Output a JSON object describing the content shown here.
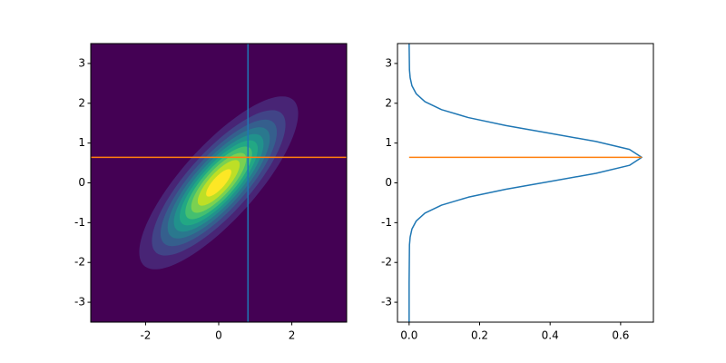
{
  "chart_data": [
    {
      "type": "contour",
      "mean": [
        0,
        0
      ],
      "cov": [
        [
          1,
          0.8
        ],
        [
          0.8,
          1
        ]
      ],
      "levels": [
        0,
        0.025,
        0.05,
        0.075,
        0.1,
        0.125,
        0.15,
        0.175,
        0.2,
        0.225,
        0.25
      ],
      "colors": [
        "#440154",
        "#482475",
        "#414487",
        "#355f8d",
        "#2a788e",
        "#21918c",
        "#22a884",
        "#44bf70",
        "#7ad151",
        "#bddf26",
        "#fde725"
      ],
      "xlim": [
        -3.5,
        3.5
      ],
      "ylim": [
        -3.5,
        3.5
      ],
      "xticks": [
        -2,
        0,
        2
      ],
      "yticks": [
        -3,
        -2,
        -1,
        0,
        1,
        2,
        3
      ],
      "vline": {
        "value": 0.8,
        "color": "#1f77b4"
      },
      "hline": {
        "value": 0.64,
        "color": "#ff7f0e"
      }
    },
    {
      "type": "line",
      "y": [
        -3.5,
        -2.5,
        -1.56,
        -1.36,
        -1.16,
        -0.96,
        -0.76,
        -0.56,
        -0.36,
        -0.16,
        0.04,
        0.24,
        0.44,
        0.64,
        0.84,
        1.04,
        1.24,
        1.44,
        1.64,
        1.84,
        2.04,
        2.24,
        2.44,
        2.64,
        2.84,
        3.5
      ],
      "values": [
        0,
        0,
        0.001,
        0.003,
        0.008,
        0.02,
        0.045,
        0.092,
        0.168,
        0.275,
        0.403,
        0.53,
        0.625,
        0.66,
        0.625,
        0.53,
        0.403,
        0.275,
        0.168,
        0.092,
        0.045,
        0.02,
        0.008,
        0.003,
        0.001,
        0
      ],
      "color": "#1f77b4",
      "xlim": [
        -0.033,
        0.693
      ],
      "ylim": [
        -3.5,
        3.5
      ],
      "xticks": [
        {
          "value": 0,
          "label": "0.0"
        },
        {
          "value": 0.2,
          "label": "0.2"
        },
        {
          "value": 0.4,
          "label": "0.4"
        },
        {
          "value": 0.6,
          "label": "0.6"
        }
      ],
      "yticks": [
        -3,
        -2,
        -1,
        0,
        1,
        2,
        3
      ],
      "hline": {
        "value": 0.64,
        "xrange": [
          0,
          0.66
        ],
        "color": "#ff7f0e"
      }
    }
  ]
}
